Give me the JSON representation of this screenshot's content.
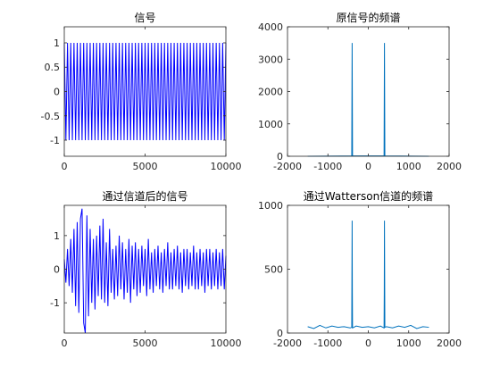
{
  "chart_data": [
    {
      "type": "line",
      "title": "信号",
      "color": "#0000ff",
      "xlim": [
        0,
        10000
      ],
      "xticks": [
        0,
        5000,
        10000
      ],
      "ylim": [
        -1.33,
        1.33
      ],
      "yticks": [
        -1,
        -0.5,
        0,
        0.5,
        1
      ],
      "x": [
        0,
        100,
        200,
        300,
        400,
        500,
        600,
        700,
        800,
        900,
        1000,
        1100,
        1200,
        1300,
        1400,
        1500,
        1600,
        1700,
        1800,
        1900,
        2000,
        2100,
        2200,
        2300,
        2400,
        2500,
        2600,
        2700,
        2800,
        2900,
        3000,
        3100,
        3200,
        3300,
        3400,
        3500,
        3600,
        3700,
        3800,
        3900,
        4000,
        4100,
        4200,
        4300,
        4400,
        4500,
        4600,
        4700,
        4800,
        4900,
        5000,
        5100,
        5200,
        5300,
        5400,
        5500,
        5600,
        5700,
        5800,
        5900,
        6000,
        6100,
        6200,
        6300,
        6400,
        6500,
        6600,
        6700,
        6800,
        6900,
        7000,
        7100,
        7200,
        7300,
        7400,
        7500,
        7600,
        7700,
        7800,
        7900,
        8000,
        8100,
        8200,
        8300,
        8400,
        8500,
        8600,
        8700,
        8800,
        8900,
        9000,
        9100,
        9200,
        9300,
        9400,
        9500,
        9600,
        9700,
        9800,
        9900,
        10000
      ],
      "values": [
        1,
        -1,
        1,
        -1,
        1,
        -1,
        1,
        -1,
        1,
        -1,
        1,
        -1,
        1,
        -1,
        1,
        -1,
        1,
        -1,
        1,
        -1,
        1,
        -1,
        1,
        -1,
        1,
        -1,
        1,
        -1,
        1,
        -1,
        1,
        -1,
        1,
        -1,
        1,
        -1,
        1,
        -1,
        1,
        -1,
        1,
        -1,
        1,
        -1,
        1,
        -1,
        1,
        -1,
        1,
        -1,
        1,
        -1,
        1,
        -1,
        1,
        -1,
        1,
        -1,
        1,
        -1,
        1,
        -1,
        1,
        -1,
        1,
        -1,
        1,
        -1,
        1,
        -1,
        1,
        -1,
        1,
        -1,
        1,
        -1,
        1,
        -1,
        1,
        -1,
        1,
        -1,
        1,
        -1,
        1,
        -1,
        1,
        -1,
        1,
        -1,
        1,
        -1,
        1,
        -1,
        1,
        -1,
        1,
        -1,
        1,
        -1,
        1
      ]
    },
    {
      "type": "line",
      "title": "原信号的频谱",
      "color": "#0072bd",
      "xlim": [
        -2000,
        2000
      ],
      "xticks": [
        -2000,
        -1000,
        0,
        1000,
        2000
      ],
      "ylim": [
        0,
        4000
      ],
      "yticks": [
        0,
        1000,
        2000,
        3000,
        4000
      ],
      "x": [
        -1500,
        -410,
        -400,
        -390,
        390,
        400,
        410,
        1500
      ],
      "values": [
        0,
        10,
        3500,
        10,
        10,
        3500,
        10,
        0
      ]
    },
    {
      "type": "line",
      "title": "通过信道后的信号",
      "color": "#0000ff",
      "xlim": [
        0,
        10000
      ],
      "xticks": [
        0,
        5000,
        10000
      ],
      "ylim": [
        -1.9,
        1.9
      ],
      "yticks": [
        -1,
        0,
        1
      ],
      "x": [
        0,
        100,
        200,
        300,
        400,
        500,
        600,
        700,
        800,
        900,
        1000,
        1100,
        1200,
        1300,
        1400,
        1500,
        1600,
        1700,
        1800,
        1900,
        2000,
        2100,
        2200,
        2300,
        2400,
        2500,
        2600,
        2700,
        2800,
        2900,
        3000,
        3100,
        3200,
        3300,
        3400,
        3500,
        3600,
        3700,
        3800,
        3900,
        4000,
        4100,
        4200,
        4300,
        4400,
        4500,
        4600,
        4700,
        4800,
        4900,
        5000,
        5100,
        5200,
        5300,
        5400,
        5500,
        5600,
        5700,
        5800,
        5900,
        6000,
        6100,
        6200,
        6300,
        6400,
        6500,
        6600,
        6700,
        6800,
        6900,
        7000,
        7100,
        7200,
        7300,
        7400,
        7500,
        7600,
        7700,
        7800,
        7900,
        8000,
        8100,
        8200,
        8300,
        8400,
        8500,
        8600,
        8700,
        8800,
        8900,
        9000,
        9100,
        9200,
        9300,
        9400,
        9500,
        9600,
        9700,
        9800,
        9900,
        10000
      ],
      "values": [
        0.3,
        -0.4,
        0.6,
        -0.5,
        0.9,
        -0.7,
        1.2,
        -1.1,
        1.4,
        -1.3,
        1.5,
        1.8,
        -1.6,
        -1.9,
        1.6,
        -1.4,
        1.2,
        -1.0,
        0.9,
        -1.2,
        1.0,
        -0.8,
        1.3,
        -0.9,
        1.5,
        -1.0,
        0.8,
        -1.1,
        1.2,
        -0.7,
        0.6,
        -0.9,
        0.7,
        -0.8,
        1.0,
        -0.6,
        0.8,
        -0.9,
        0.6,
        -0.7,
        0.9,
        -1.0,
        0.7,
        -0.6,
        0.8,
        -0.8,
        0.6,
        -0.7,
        0.7,
        -0.5,
        0.6,
        -0.8,
        0.9,
        -0.6,
        0.5,
        -0.7,
        0.6,
        -0.5,
        0.7,
        -0.6,
        0.5,
        -0.7,
        0.6,
        -0.5,
        0.8,
        -0.6,
        0.5,
        -0.6,
        0.6,
        -0.5,
        0.7,
        -0.6,
        0.5,
        -0.7,
        0.6,
        -0.5,
        0.6,
        -0.6,
        0.5,
        -0.5,
        0.7,
        -0.6,
        0.5,
        -0.6,
        0.6,
        -0.5,
        0.5,
        -0.7,
        0.6,
        -0.5,
        0.6,
        -0.6,
        0.5,
        -0.5,
        0.6,
        -0.6,
        0.5,
        -0.5,
        0.6,
        -0.6,
        0.4
      ]
    },
    {
      "type": "line",
      "title": "通过Watterson信道的频谱",
      "color": "#0072bd",
      "xlim": [
        -2000,
        2000
      ],
      "xticks": [
        -2000,
        -1000,
        0,
        1000,
        2000
      ],
      "ylim": [
        0,
        1000
      ],
      "yticks": [
        0,
        500,
        1000
      ],
      "x": [
        -1500,
        -1350,
        -1200,
        -1050,
        -900,
        -750,
        -600,
        -450,
        -410,
        -400,
        -395,
        -390,
        -300,
        -150,
        0,
        150,
        300,
        390,
        395,
        400,
        410,
        450,
        600,
        750,
        900,
        1050,
        1200,
        1350,
        1500
      ],
      "values": [
        50,
        35,
        60,
        40,
        55,
        45,
        50,
        40,
        45,
        880,
        320,
        40,
        55,
        45,
        50,
        40,
        55,
        40,
        320,
        880,
        45,
        50,
        40,
        55,
        45,
        60,
        35,
        50,
        45
      ]
    }
  ]
}
